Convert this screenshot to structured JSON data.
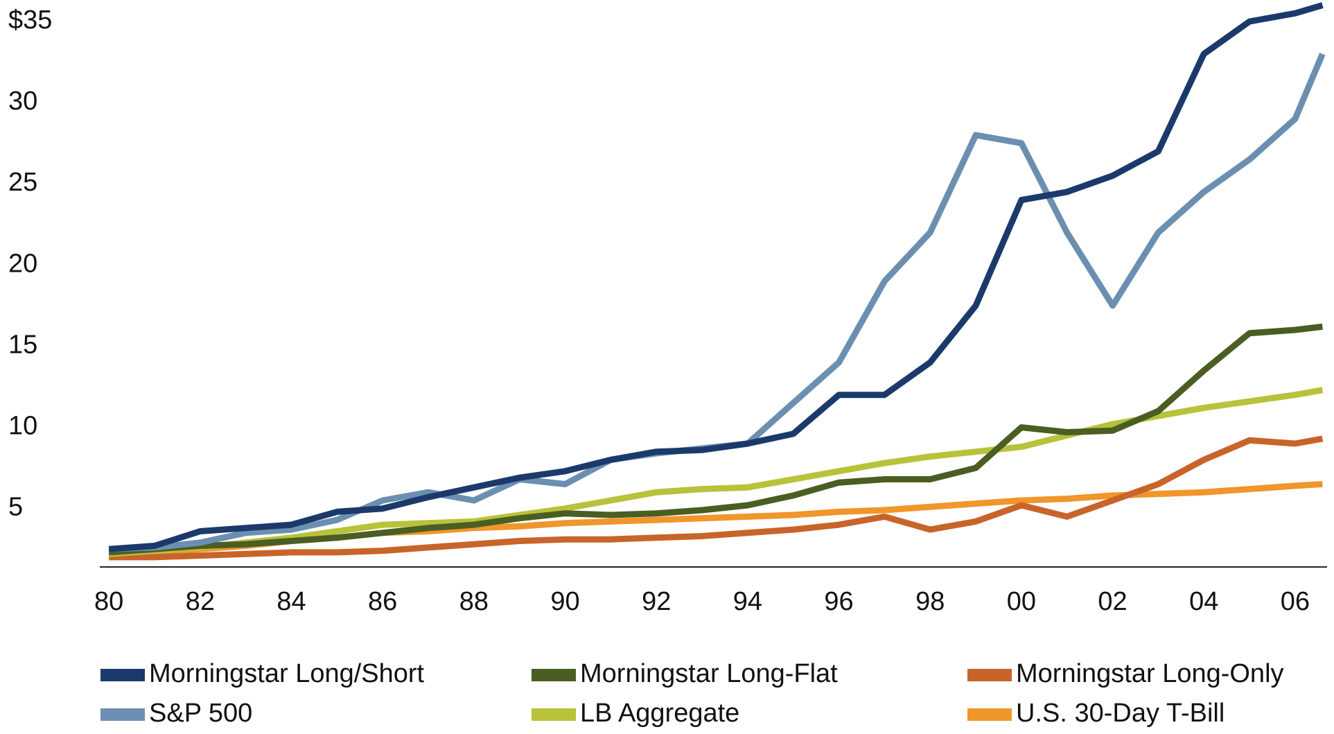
{
  "chart_data": {
    "type": "line",
    "x": [
      1980,
      1981,
      1982,
      1983,
      1984,
      1985,
      1986,
      1987,
      1988,
      1989,
      1990,
      1991,
      1992,
      1993,
      1994,
      1995,
      1996,
      1997,
      1998,
      1999,
      2000,
      2001,
      2002,
      2003,
      2004,
      2005,
      2006,
      2006.6
    ],
    "series": [
      {
        "name": "Morningstar Long/Short",
        "color": "#1b3a6b",
        "values": [
          2.5,
          2.7,
          3.6,
          3.8,
          4.0,
          4.8,
          5.0,
          5.7,
          6.3,
          6.9,
          7.3,
          8.0,
          8.5,
          8.6,
          9.0,
          9.6,
          12.0,
          12.0,
          14.0,
          17.5,
          24.0,
          24.5,
          25.5,
          27.0,
          33.0,
          35.0,
          35.5,
          36.0
        ]
      },
      {
        "name": "S&P 500",
        "color": "#6b8fb0",
        "values": [
          2.5,
          2.6,
          2.9,
          3.5,
          3.7,
          4.3,
          5.5,
          6.0,
          5.5,
          6.8,
          6.5,
          8.0,
          8.4,
          8.7,
          9.0,
          11.5,
          14.0,
          19.0,
          22.0,
          28.0,
          27.5,
          22.0,
          17.5,
          22.0,
          24.5,
          26.5,
          29.0,
          33.0
        ]
      },
      {
        "name": "Morningstar Long-Flat",
        "color": "#4a5e23",
        "values": [
          2.3,
          2.5,
          2.7,
          2.8,
          3.0,
          3.2,
          3.5,
          3.8,
          4.0,
          4.4,
          4.7,
          4.6,
          4.7,
          4.9,
          5.2,
          5.8,
          6.6,
          6.8,
          6.8,
          7.5,
          10.0,
          9.7,
          9.8,
          11.0,
          13.5,
          15.8,
          16.0,
          16.2
        ]
      },
      {
        "name": "LB Aggregate",
        "color": "#b8c23a",
        "values": [
          2.2,
          2.4,
          2.6,
          2.9,
          3.2,
          3.6,
          4.0,
          4.1,
          4.2,
          4.6,
          5.0,
          5.5,
          6.0,
          6.2,
          6.3,
          6.8,
          7.3,
          7.8,
          8.2,
          8.5,
          8.8,
          9.5,
          10.2,
          10.7,
          11.2,
          11.6,
          12.0,
          12.3
        ]
      },
      {
        "name": "Morningstar Long-Only",
        "color": "#c8642a",
        "values": [
          2.0,
          2.0,
          2.1,
          2.2,
          2.3,
          2.3,
          2.4,
          2.6,
          2.8,
          3.0,
          3.1,
          3.1,
          3.2,
          3.3,
          3.5,
          3.7,
          4.0,
          4.5,
          3.7,
          4.2,
          5.2,
          4.5,
          5.5,
          6.5,
          8.0,
          9.2,
          9.0,
          9.3
        ]
      },
      {
        "name": "U.S. 30-Day T-Bill",
        "color": "#f0962a",
        "values": [
          2.0,
          2.2,
          2.5,
          2.7,
          3.0,
          3.2,
          3.5,
          3.6,
          3.8,
          3.9,
          4.1,
          4.2,
          4.3,
          4.4,
          4.5,
          4.6,
          4.8,
          4.9,
          5.1,
          5.3,
          5.5,
          5.6,
          5.8,
          5.9,
          6.0,
          6.2,
          6.4,
          6.5
        ]
      }
    ],
    "xlim": [
      1979.8,
      2006.7
    ],
    "xticks": [
      {
        "value": 1980,
        "label": "80"
      },
      {
        "value": 1982,
        "label": "82"
      },
      {
        "value": 1984,
        "label": "84"
      },
      {
        "value": 1986,
        "label": "86"
      },
      {
        "value": 1988,
        "label": "88"
      },
      {
        "value": 1990,
        "label": "90"
      },
      {
        "value": 1992,
        "label": "92"
      },
      {
        "value": 1994,
        "label": "94"
      },
      {
        "value": 1996,
        "label": "96"
      },
      {
        "value": 1998,
        "label": "98"
      },
      {
        "value": 2000,
        "label": "00"
      },
      {
        "value": 2002,
        "label": "02"
      },
      {
        "value": 2004,
        "label": "04"
      },
      {
        "value": 2006,
        "label": "06"
      }
    ],
    "ylim": [
      1.4,
      36.3
    ],
    "yticks": [
      5,
      10,
      15,
      20,
      25,
      30,
      {
        "value": 35,
        "label": "$35"
      }
    ],
    "grid": false,
    "legend": "bottom"
  }
}
